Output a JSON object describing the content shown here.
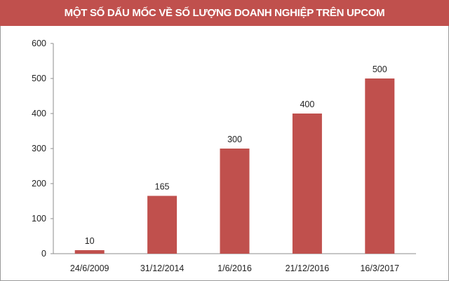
{
  "chart_data": {
    "type": "bar",
    "title": "MỘT SỐ DẤU MỐC VỀ SỐ LƯỢNG DOANH NGHIỆP TRÊN UPCOM",
    "categories": [
      "24/6/2009",
      "31/12/2014",
      "1/6/2016",
      "21/12/2016",
      "16/3/2017"
    ],
    "values": [
      10,
      165,
      300,
      400,
      500
    ],
    "data_labels": [
      "10",
      "165",
      "300",
      "400",
      "500"
    ],
    "xlabel": "",
    "ylabel": "",
    "ylim": [
      0,
      600
    ],
    "yticks": [
      0,
      100,
      200,
      300,
      400,
      500,
      600
    ],
    "grid": false,
    "legend": "none",
    "colors": {
      "bar": "#c0504d",
      "title_bar": "#c0504d",
      "axis": "#8c8c8c"
    }
  }
}
